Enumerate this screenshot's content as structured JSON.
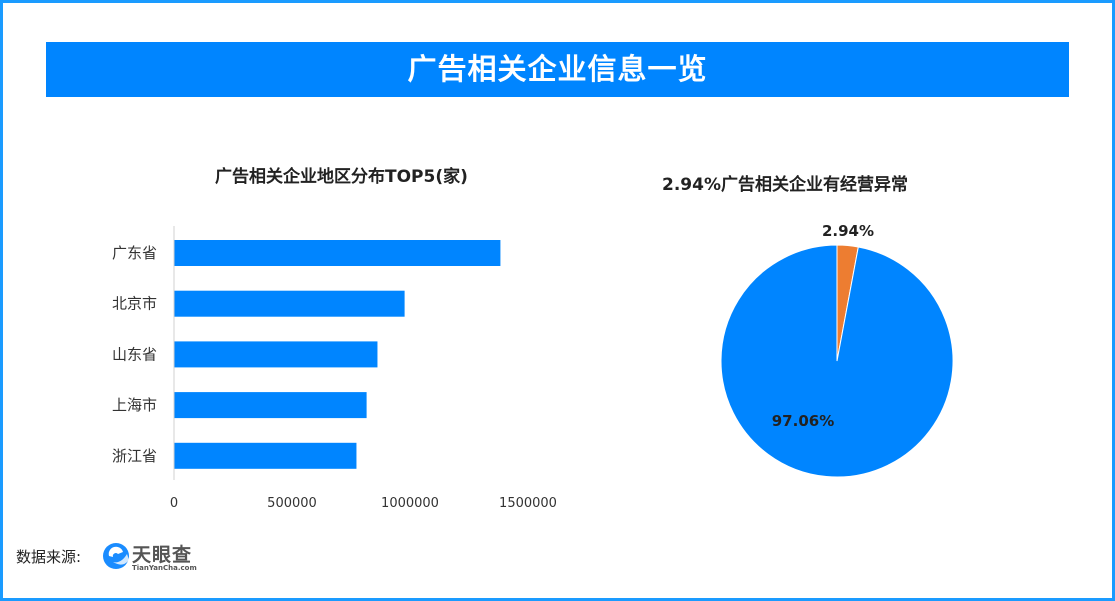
{
  "banner_title": "广告相关企业信息一览",
  "source_label": "数据来源:",
  "logo": {
    "name": "天眼查",
    "sub": "TianYanCha.com"
  },
  "colors": {
    "frame": "#1a9bff",
    "banner": "#0085ff",
    "bar": "#0085ff",
    "pie_main": "#0085ff",
    "pie_minor": "#ed7d31"
  },
  "chart_data": [
    {
      "type": "bar",
      "orientation": "horizontal",
      "title": "广告相关企业地区分布TOP5(家)",
      "categories": [
        "广东省",
        "北京市",
        "山东省",
        "上海市",
        "浙江省"
      ],
      "values": [
        1381000,
        975000,
        860000,
        814000,
        771000
      ],
      "xlim": [
        0,
        1500000
      ],
      "xticks": [
        "0",
        "500000",
        "1000000",
        "1500000"
      ],
      "grid": false
    },
    {
      "type": "pie",
      "title": "2.94%广告相关企业有经营异常",
      "slices": [
        {
          "label": "2.94%",
          "value": 2.94,
          "color": "#ed7d31"
        },
        {
          "label": "97.06%",
          "value": 97.06,
          "color": "#0085ff"
        }
      ]
    }
  ]
}
